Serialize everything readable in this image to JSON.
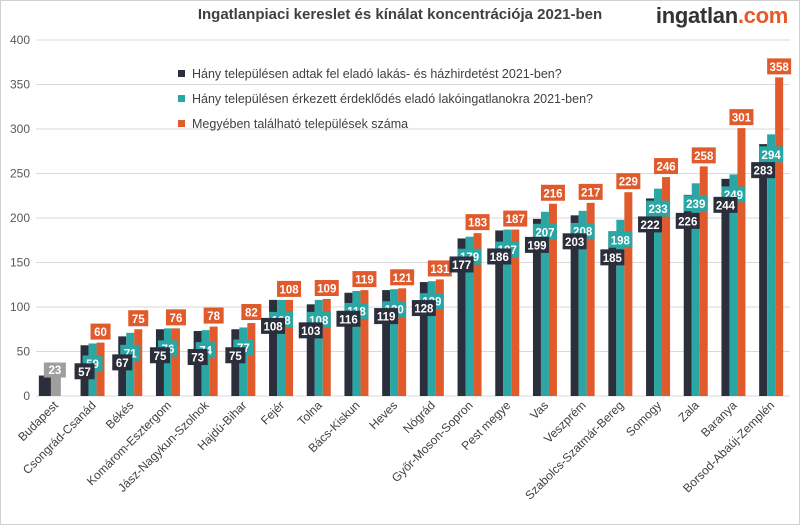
{
  "header": {
    "title": "Ingatlanpiaci kereslet és kínálat koncentrációja 2021-ben",
    "brand_main": "ingatlan",
    "brand_accent": ".com"
  },
  "colors": {
    "series1": "#2b2e3b",
    "series2": "#2aa6a4",
    "series3": "#e05a2b",
    "budapest": "#9e9e9e",
    "grid": "#d9d9d9"
  },
  "chart_data": {
    "type": "bar",
    "title": "Ingatlanpiaci kereslet és kínálat koncentrációja 2021-ben",
    "xlabel": "",
    "ylabel": "",
    "ylim": [
      0,
      400
    ],
    "yticks": [
      0,
      50,
      100,
      150,
      200,
      250,
      300,
      350,
      400
    ],
    "grid": true,
    "legend_position": "top-left",
    "categories": [
      "Budapest",
      "Csongrád-Csanád",
      "Békés",
      "Komárom-Esztergom",
      "Jász-Nagykun-Szolnok",
      "Hajdú-Bihar",
      "Fejér",
      "Tolna",
      "Bács-Kiskun",
      "Heves",
      "Nógrád",
      "Győr-Moson-Sopron",
      "Pest megye",
      "Vas",
      "Veszprém",
      "Szabolcs-Szatmár-Bereg",
      "Somogy",
      "Zala",
      "Baranya",
      "Borsod-Abaúj-Zemplén"
    ],
    "series": [
      {
        "name": "Hány településen adtak fel eladó lakás- és házhirdetést 2021-ben?",
        "values": [
          null,
          57,
          67,
          75,
          73,
          75,
          108,
          103,
          116,
          119,
          128,
          177,
          186,
          199,
          203,
          185,
          222,
          226,
          244,
          283
        ]
      },
      {
        "name": "Hány településen érkezett érdeklődés eladó lakóingatlanokra 2021-ben?",
        "values": [
          null,
          59,
          71,
          76,
          74,
          77,
          108,
          108,
          118,
          120,
          129,
          179,
          187,
          207,
          208,
          198,
          233,
          239,
          249,
          294
        ]
      },
      {
        "name": "Megyében található települések száma",
        "values": [
          null,
          60,
          75,
          76,
          78,
          82,
          108,
          109,
          119,
          121,
          131,
          183,
          187,
          216,
          217,
          229,
          246,
          258,
          301,
          358
        ]
      }
    ],
    "budapest_value": 23
  }
}
